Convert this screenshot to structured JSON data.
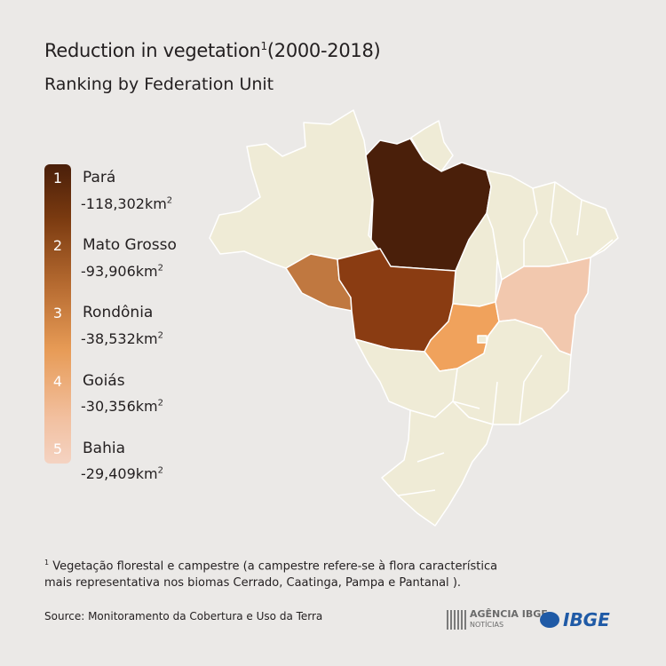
{
  "header": {
    "title": "Reduction in vegetation",
    "title_sup": "1",
    "title_period": "(2000-2018)",
    "subtitle": "Ranking by Federation Unit"
  },
  "legend": [
    {
      "rank": "1",
      "name": "Pará",
      "value": "-118,302",
      "unit": "km",
      "unit_sup": "2",
      "color": "#4a1f0a"
    },
    {
      "rank": "2",
      "name": "Mato Grosso",
      "value": "-93,906",
      "unit": "km",
      "unit_sup": "2",
      "color": "#8a3c12"
    },
    {
      "rank": "3",
      "name": "Rondônia",
      "value": "-38,532",
      "unit": "km",
      "unit_sup": "2",
      "color": "#c07840"
    },
    {
      "rank": "4",
      "name": "Goiás",
      "value": "-30,356",
      "unit": "km",
      "unit_sup": "2",
      "color": "#f0a25c"
    },
    {
      "rank": "5",
      "name": "Bahia",
      "value": "-29,409",
      "unit": "km",
      "unit_sup": "2",
      "color": "#f2c8ae"
    }
  ],
  "map_colors": {
    "base": "#efebd6",
    "border": "#ffffff"
  },
  "footnote": {
    "marker": "1",
    "line1": "Vegetação florestal e campestre (a campestre refere-se à flora característica",
    "line2": "mais representativa nos biomas Cerrado, Caatinga, Pampa e Pantanal",
    "line2_end": ")."
  },
  "source": "Source: Monitoramento da Cobertura e Uso da Terra",
  "logos": {
    "agencia": "AGÊNCIA IBGE",
    "agencia_sub": "NOTÍCIAS",
    "ibge": "IBGE"
  }
}
